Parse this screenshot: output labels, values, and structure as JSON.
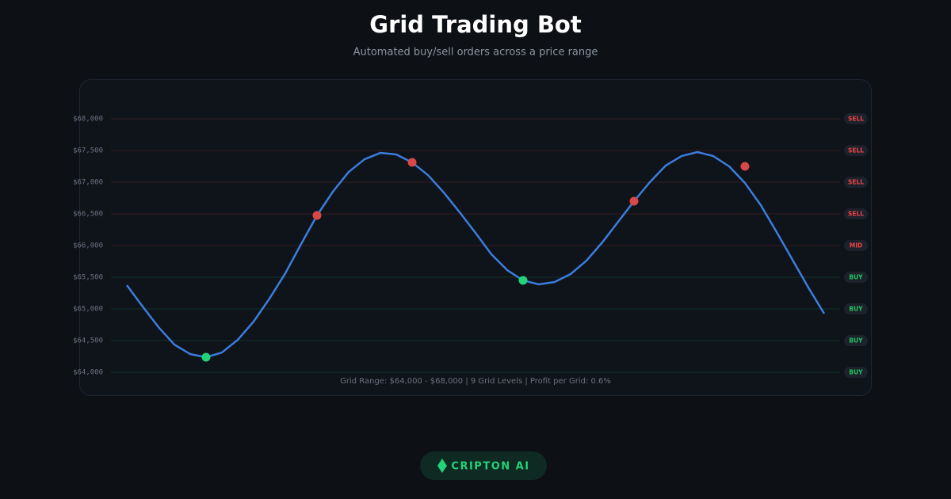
{
  "chart_data": {
    "type": "line",
    "title": "Grid Trading Bot",
    "subtitle": "Automated buy/sell orders across a price range",
    "ylim": [
      64000,
      68000
    ],
    "yticks": [
      {
        "value": 64000,
        "label": "$64,000"
      },
      {
        "value": 64500,
        "label": "$64,500"
      },
      {
        "value": 65000,
        "label": "$65,000"
      },
      {
        "value": 65500,
        "label": "$65,500"
      },
      {
        "value": 66000,
        "label": "$66,000"
      },
      {
        "value": 66500,
        "label": "$66,500"
      },
      {
        "value": 67000,
        "label": "$67,000"
      },
      {
        "value": 67500,
        "label": "$67,500"
      },
      {
        "value": 68000,
        "label": "$68,000"
      }
    ],
    "level_labels": [
      "BUY",
      "BUY",
      "BUY",
      "BUY",
      "MID",
      "SELL",
      "SELL",
      "SELL",
      "SELL"
    ],
    "level_colors": [
      "#22c55e",
      "#22c55e",
      "#22c55e",
      "#22c55e",
      "#ef4444",
      "#ef4444",
      "#ef4444",
      "#ef4444",
      "#ef4444"
    ],
    "grid": true,
    "series": [
      {
        "mark": "line",
        "color": "#3b7ddd",
        "values": [
          65375,
          65037,
          64712,
          64437,
          64287,
          64237,
          64312,
          64512,
          64800,
          65162,
          65562,
          66025,
          66475,
          66850,
          67162,
          67362,
          67462,
          67437,
          67312,
          67112,
          66837,
          66525,
          66200,
          65862,
          65612,
          65450,
          65387,
          65425,
          65550,
          65762,
          66050,
          66375,
          66700,
          67000,
          67262,
          67412,
          67475,
          67412,
          67250,
          66987,
          66637,
          66212,
          65775,
          65337,
          64925
        ]
      },
      {
        "mark": "dot",
        "color": "#22d37a",
        "values": [
          null,
          null,
          null,
          null,
          null,
          64237,
          null,
          null,
          null,
          null,
          null,
          null,
          null,
          null,
          null,
          null,
          null,
          null,
          null,
          null,
          null,
          null,
          null,
          null,
          null,
          65450,
          null,
          null,
          null,
          null,
          null,
          null,
          null,
          null,
          null,
          null,
          null,
          null,
          null,
          null,
          null,
          null,
          null,
          null,
          null
        ]
      },
      {
        "mark": "dot",
        "color": "#d94848",
        "values": [
          null,
          null,
          null,
          null,
          null,
          null,
          null,
          null,
          null,
          null,
          null,
          null,
          66475,
          null,
          null,
          null,
          null,
          null,
          67312,
          null,
          null,
          null,
          null,
          null,
          null,
          null,
          null,
          null,
          null,
          null,
          null,
          null,
          66700,
          null,
          null,
          null,
          null,
          null,
          null,
          67250,
          null,
          null,
          null,
          null,
          null
        ]
      }
    ],
    "footnote": "Grid Range: $64,000 - $68,000 | 9 Grid Levels | Profit per Grid: 0.6%"
  },
  "brand": "CRIPTON AI"
}
